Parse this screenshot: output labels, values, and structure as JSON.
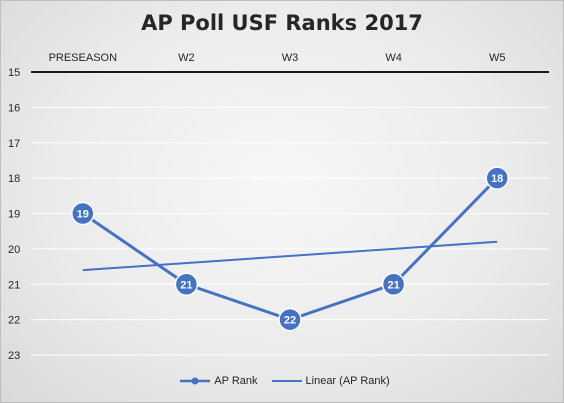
{
  "chart_data": {
    "type": "line",
    "title": "AP Poll USF Ranks 2017",
    "categories": [
      "PRESEASON",
      "W2",
      "W3",
      "W4",
      "W5"
    ],
    "y_ticks": [
      15,
      16,
      17,
      18,
      19,
      20,
      21,
      22,
      23
    ],
    "ylim": [
      15,
      23
    ],
    "y_reversed": true,
    "x_axis_position": "top",
    "grid": true,
    "series": [
      {
        "name": "AP Rank",
        "values": [
          19,
          21,
          22,
          21,
          18
        ],
        "color": "#4472c4",
        "markers": true,
        "data_labels": true
      },
      {
        "name": "Linear (AP Rank)",
        "type": "trendline",
        "values": [
          20.6,
          20.4,
          20.2,
          20.0,
          19.8
        ],
        "color": "#4472c4"
      }
    ],
    "legend": {
      "position": "bottom"
    }
  }
}
